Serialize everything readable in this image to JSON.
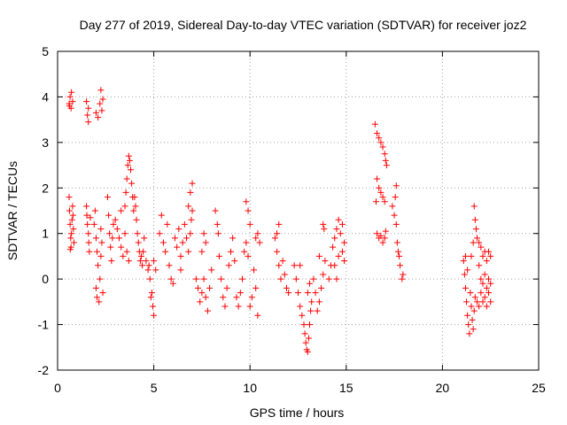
{
  "chart_data": {
    "type": "scatter",
    "title": "Day 277 of 2019, Sidereal Day-to-day VTEC variation (SDTVAR) for receiver joz2",
    "xlabel": "GPS time / hours",
    "ylabel": "SDTVAR / TECUs",
    "xlim": [
      0,
      25
    ],
    "ylim": [
      -2,
      5
    ],
    "xticks": [
      0,
      5,
      10,
      15,
      20,
      25
    ],
    "yticks": [
      -2,
      -1,
      0,
      1,
      2,
      3,
      4,
      5
    ],
    "xtick_labels": [
      "0",
      "5",
      "10",
      "15",
      "20",
      "25"
    ],
    "ytick_labels": [
      "-2",
      "-1",
      "0",
      "1",
      "2",
      "3",
      "4",
      "5"
    ],
    "grid": true,
    "marker": "+",
    "color": "#ff0000",
    "series": [
      {
        "name": "SDTVAR",
        "points": [
          [
            0.6,
            3.85
          ],
          [
            0.65,
            4.0
          ],
          [
            0.7,
            3.75
          ],
          [
            0.72,
            4.1
          ],
          [
            0.78,
            3.9
          ],
          [
            0.62,
            3.8
          ],
          [
            0.6,
            1.8
          ],
          [
            0.62,
            1.5
          ],
          [
            0.65,
            1.2
          ],
          [
            0.68,
            0.9
          ],
          [
            0.7,
            0.7
          ],
          [
            0.72,
            1.0
          ],
          [
            0.75,
            1.3
          ],
          [
            0.78,
            1.6
          ],
          [
            0.8,
            1.4
          ],
          [
            0.82,
            1.1
          ],
          [
            0.85,
            0.8
          ],
          [
            0.66,
            0.65
          ],
          [
            1.5,
            3.9
          ],
          [
            1.55,
            3.6
          ],
          [
            1.6,
            3.75
          ],
          [
            1.6,
            3.45
          ],
          [
            1.5,
            1.6
          ],
          [
            1.52,
            1.4
          ],
          [
            1.55,
            1.2
          ],
          [
            1.6,
            1.0
          ],
          [
            1.62,
            0.8
          ],
          [
            1.65,
            0.6
          ],
          [
            1.7,
            1.35
          ],
          [
            2.0,
            3.65
          ],
          [
            2.1,
            3.55
          ],
          [
            2.2,
            3.85
          ],
          [
            2.25,
            4.15
          ],
          [
            2.3,
            3.7
          ],
          [
            2.35,
            3.95
          ],
          [
            1.9,
            1.2
          ],
          [
            1.95,
            1.5
          ],
          [
            2.0,
            0.9
          ],
          [
            2.05,
            0.6
          ],
          [
            2.1,
            0.3
          ],
          [
            2.0,
            -0.2
          ],
          [
            2.05,
            -0.4
          ],
          [
            2.15,
            -0.5
          ],
          [
            2.2,
            0.0
          ],
          [
            2.25,
            0.5
          ],
          [
            2.3,
            0.8
          ],
          [
            2.35,
            -0.3
          ],
          [
            2.25,
            1.1
          ],
          [
            2.6,
            1.8
          ],
          [
            2.65,
            1.4
          ],
          [
            2.7,
            1.0
          ],
          [
            2.75,
            0.7
          ],
          [
            2.8,
            0.4
          ],
          [
            2.85,
            0.9
          ],
          [
            2.9,
            1.2
          ],
          [
            3.0,
            1.3
          ],
          [
            3.1,
            1.1
          ],
          [
            3.2,
            0.9
          ],
          [
            3.3,
            0.7
          ],
          [
            3.4,
            0.5
          ],
          [
            3.3,
            1.5
          ],
          [
            3.5,
            1.0
          ],
          [
            3.6,
            0.6
          ],
          [
            3.7,
            0.4
          ],
          [
            3.5,
            1.6
          ],
          [
            3.55,
            1.9
          ],
          [
            3.6,
            2.2
          ],
          [
            3.65,
            2.5
          ],
          [
            3.7,
            2.7
          ],
          [
            3.75,
            2.6
          ],
          [
            3.8,
            2.4
          ],
          [
            3.85,
            2.1
          ],
          [
            3.9,
            1.8
          ],
          [
            3.95,
            1.5
          ],
          [
            4.0,
            1.8
          ],
          [
            4.05,
            1.6
          ],
          [
            4.1,
            1.3
          ],
          [
            4.15,
            1.0
          ],
          [
            4.2,
            0.8
          ],
          [
            4.25,
            0.6
          ],
          [
            4.3,
            0.4
          ],
          [
            4.35,
            0.5
          ],
          [
            4.4,
            0.3
          ],
          [
            4.45,
            0.6
          ],
          [
            4.5,
            0.9
          ],
          [
            4.6,
            0.4
          ],
          [
            4.7,
            0.2
          ],
          [
            4.8,
            0.0
          ],
          [
            4.9,
            -0.3
          ],
          [
            4.95,
            -0.6
          ],
          [
            5.0,
            -0.8
          ],
          [
            4.85,
            -0.4
          ],
          [
            4.75,
            0.3
          ],
          [
            5.0,
            0.4
          ],
          [
            5.1,
            0.2
          ],
          [
            5.3,
            1.0
          ],
          [
            5.4,
            1.4
          ],
          [
            5.5,
            0.8
          ],
          [
            5.6,
            0.6
          ],
          [
            5.7,
            1.2
          ],
          [
            5.8,
            0.3
          ],
          [
            5.9,
            0.0
          ],
          [
            6.0,
            -0.1
          ],
          [
            6.1,
            0.9
          ],
          [
            6.2,
            0.7
          ],
          [
            6.3,
            1.1
          ],
          [
            6.4,
            0.5
          ],
          [
            6.5,
            0.8
          ],
          [
            6.6,
            1.2
          ],
          [
            6.7,
            0.9
          ],
          [
            6.8,
            0.6
          ],
          [
            6.4,
            0.2
          ],
          [
            6.9,
            1.0
          ],
          [
            6.8,
            1.6
          ],
          [
            6.9,
            1.9
          ],
          [
            7.0,
            2.1
          ],
          [
            7.0,
            1.5
          ],
          [
            6.95,
            1.3
          ],
          [
            7.2,
            0.0
          ],
          [
            7.3,
            -0.2
          ],
          [
            7.4,
            -0.5
          ],
          [
            7.5,
            -0.3
          ],
          [
            7.6,
            0.0
          ],
          [
            7.7,
            -0.4
          ],
          [
            7.8,
            -0.7
          ],
          [
            7.9,
            -0.2
          ],
          [
            8.0,
            0.2
          ],
          [
            7.5,
            0.6
          ],
          [
            7.6,
            1.0
          ],
          [
            7.7,
            0.8
          ],
          [
            8.2,
            1.5
          ],
          [
            8.3,
            1.2
          ],
          [
            8.35,
            1.0
          ],
          [
            8.4,
            0.5
          ],
          [
            8.5,
            0.0
          ],
          [
            8.6,
            -0.4
          ],
          [
            8.7,
            -0.6
          ],
          [
            8.8,
            -0.2
          ],
          [
            8.9,
            0.3
          ],
          [
            9.0,
            0.6
          ],
          [
            9.1,
            0.9
          ],
          [
            9.2,
            0.4
          ],
          [
            9.3,
            -0.4
          ],
          [
            9.4,
            -0.6
          ],
          [
            9.5,
            -0.3
          ],
          [
            9.6,
            0.0
          ],
          [
            9.7,
            0.6
          ],
          [
            9.8,
            0.8
          ],
          [
            9.9,
            0.5
          ],
          [
            10.0,
            -0.6
          ],
          [
            10.1,
            -0.4
          ],
          [
            10.2,
            0.2
          ],
          [
            10.3,
            0.9
          ],
          [
            10.4,
            1.0
          ],
          [
            10.5,
            0.8
          ],
          [
            10.3,
            -0.2
          ],
          [
            10.4,
            -0.8
          ],
          [
            9.8,
            1.7
          ],
          [
            9.9,
            1.5
          ],
          [
            10.0,
            1.2
          ],
          [
            11.3,
            0.9
          ],
          [
            11.4,
            0.6
          ],
          [
            11.5,
            0.3
          ],
          [
            11.6,
            0.0
          ],
          [
            11.5,
            1.2
          ],
          [
            11.4,
            1.0
          ],
          [
            11.7,
            0.4
          ],
          [
            11.8,
            0.1
          ],
          [
            11.9,
            -0.2
          ],
          [
            12.0,
            -0.3
          ],
          [
            12.3,
            0.3
          ],
          [
            12.4,
            0.0
          ],
          [
            12.5,
            -0.3
          ],
          [
            12.6,
            0.3
          ],
          [
            12.6,
            -0.6
          ],
          [
            12.7,
            -0.8
          ],
          [
            12.8,
            -1.0
          ],
          [
            12.85,
            -1.2
          ],
          [
            12.9,
            -1.4
          ],
          [
            12.95,
            -1.55
          ],
          [
            13.0,
            -1.6
          ],
          [
            13.05,
            -1.3
          ],
          [
            13.1,
            -1.0
          ],
          [
            13.15,
            -0.7
          ],
          [
            13.2,
            -0.5
          ],
          [
            13.0,
            -0.3
          ],
          [
            13.1,
            -0.1
          ],
          [
            13.3,
            0.0
          ],
          [
            13.4,
            -0.3
          ],
          [
            13.5,
            -0.7
          ],
          [
            13.6,
            -0.5
          ],
          [
            13.7,
            -0.2
          ],
          [
            13.8,
            0.1
          ],
          [
            13.9,
            0.4
          ],
          [
            13.8,
            1.2
          ],
          [
            13.85,
            1.1
          ],
          [
            13.6,
            0.5
          ],
          [
            14.1,
            0.0
          ],
          [
            14.2,
            0.3
          ],
          [
            14.3,
            0.7
          ],
          [
            14.4,
            0.9
          ],
          [
            14.5,
            1.1
          ],
          [
            14.6,
            1.3
          ],
          [
            14.7,
            1.0
          ],
          [
            14.8,
            0.6
          ],
          [
            14.9,
            0.8
          ],
          [
            14.4,
            0.3
          ],
          [
            14.5,
            0.0
          ],
          [
            14.6,
            0.5
          ],
          [
            14.8,
            1.2
          ],
          [
            14.9,
            0.4
          ],
          [
            16.5,
            3.4
          ],
          [
            16.6,
            3.2
          ],
          [
            16.7,
            3.1
          ],
          [
            16.8,
            3.0
          ],
          [
            16.9,
            2.9
          ],
          [
            17.0,
            2.75
          ],
          [
            17.05,
            2.6
          ],
          [
            17.1,
            2.5
          ],
          [
            16.6,
            2.2
          ],
          [
            16.7,
            2.0
          ],
          [
            16.8,
            1.9
          ],
          [
            16.9,
            1.8
          ],
          [
            17.0,
            1.7
          ],
          [
            16.55,
            1.7
          ],
          [
            16.6,
            1.0
          ],
          [
            16.7,
            0.9
          ],
          [
            16.8,
            0.95
          ],
          [
            16.9,
            0.8
          ],
          [
            17.0,
            0.9
          ],
          [
            17.05,
            1.05
          ],
          [
            17.4,
            1.6
          ],
          [
            17.5,
            1.4
          ],
          [
            17.6,
            1.2
          ],
          [
            17.65,
            0.8
          ],
          [
            17.7,
            0.6
          ],
          [
            17.75,
            0.5
          ],
          [
            17.8,
            0.3
          ],
          [
            17.9,
            0.0
          ],
          [
            17.95,
            0.1
          ],
          [
            17.6,
            2.05
          ],
          [
            17.55,
            1.8
          ],
          [
            21.1,
            0.4
          ],
          [
            21.15,
            0.1
          ],
          [
            21.2,
            -0.2
          ],
          [
            21.25,
            -0.5
          ],
          [
            21.3,
            -0.8
          ],
          [
            21.35,
            -1.0
          ],
          [
            21.4,
            -1.2
          ],
          [
            21.2,
            0.5
          ],
          [
            21.3,
            0.2
          ],
          [
            21.45,
            -0.3
          ],
          [
            21.5,
            -0.6
          ],
          [
            21.55,
            -0.9
          ],
          [
            21.6,
            -1.1
          ],
          [
            21.65,
            -0.7
          ],
          [
            21.7,
            -0.4
          ],
          [
            21.8,
            -0.5
          ],
          [
            21.9,
            -0.6
          ],
          [
            22.0,
            -0.3
          ],
          [
            22.1,
            -0.5
          ],
          [
            22.2,
            -0.4
          ],
          [
            22.3,
            -0.6
          ],
          [
            22.4,
            -0.3
          ],
          [
            22.5,
            -0.5
          ],
          [
            21.5,
            0.5
          ],
          [
            21.6,
            0.8
          ],
          [
            21.65,
            1.6
          ],
          [
            21.7,
            1.3
          ],
          [
            21.75,
            1.1
          ],
          [
            21.8,
            0.9
          ],
          [
            21.9,
            0.8
          ],
          [
            22.0,
            0.7
          ],
          [
            22.1,
            0.5
          ],
          [
            22.2,
            0.6
          ],
          [
            22.3,
            0.4
          ],
          [
            22.4,
            0.6
          ],
          [
            22.5,
            0.5
          ],
          [
            21.9,
            0.3
          ],
          [
            22.0,
            0.0
          ],
          [
            22.1,
            -0.1
          ],
          [
            22.2,
            0.1
          ],
          [
            22.3,
            -0.2
          ],
          [
            22.4,
            0.0
          ],
          [
            22.5,
            -0.1
          ]
        ]
      }
    ]
  }
}
